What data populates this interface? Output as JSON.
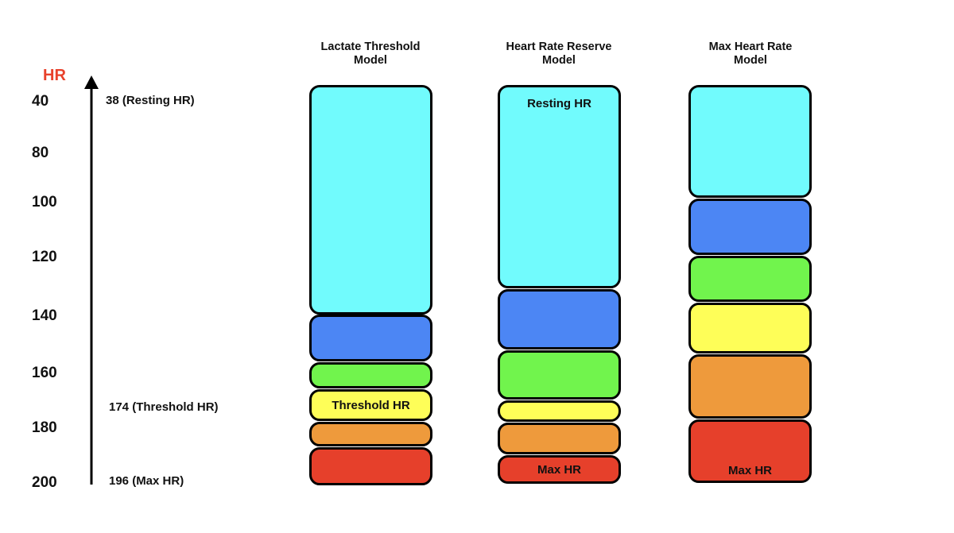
{
  "axis": {
    "title": "HR",
    "ticks": [
      "40",
      "80",
      "100",
      "120",
      "140",
      "160",
      "180",
      "200"
    ]
  },
  "annotations": {
    "resting": "38 (Resting HR)",
    "threshold": "174 (Threshold HR)",
    "max": "196 (Max HR)"
  },
  "models": [
    {
      "title_line1": "Lactate Threshold",
      "title_line2": "Model",
      "zones": [
        {
          "color": "#71fbfd",
          "label": ""
        },
        {
          "color": "#4c86f4",
          "label": ""
        },
        {
          "color": "#71f44d",
          "label": ""
        },
        {
          "color": "#fefe58",
          "label": "Threshold HR"
        },
        {
          "color": "#ee9a3c",
          "label": ""
        },
        {
          "color": "#e6402b",
          "label": ""
        }
      ]
    },
    {
      "title_line1": "Heart Rate Reserve",
      "title_line2": "Model",
      "zones": [
        {
          "color": "#71fbfd",
          "label": "Resting HR"
        },
        {
          "color": "#4c86f4",
          "label": ""
        },
        {
          "color": "#71f44d",
          "label": ""
        },
        {
          "color": "#fefe58",
          "label": ""
        },
        {
          "color": "#ee9a3c",
          "label": ""
        },
        {
          "color": "#e6402b",
          "label": "Max HR"
        }
      ]
    },
    {
      "title_line1": "Max Heart Rate",
      "title_line2": "Model",
      "zones": [
        {
          "color": "#71fbfd",
          "label": ""
        },
        {
          "color": "#4c86f4",
          "label": ""
        },
        {
          "color": "#71f44d",
          "label": ""
        },
        {
          "color": "#fefe58",
          "label": ""
        },
        {
          "color": "#ee9a3c",
          "label": ""
        },
        {
          "color": "#e6402b",
          "label": "Max HR"
        }
      ]
    }
  ]
}
